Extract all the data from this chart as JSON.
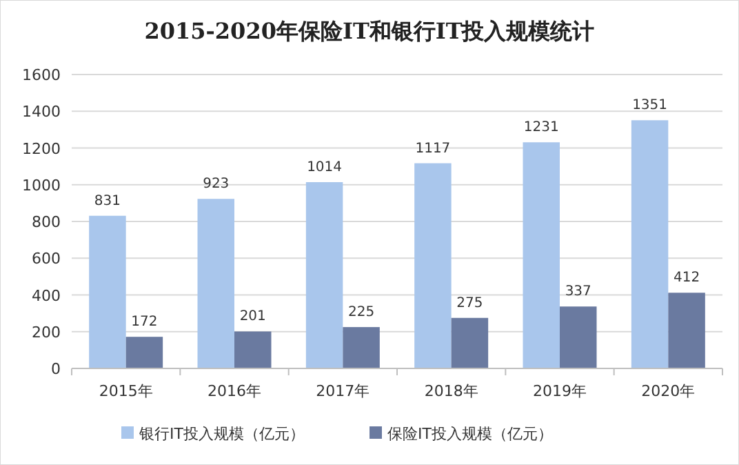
{
  "chart_data": {
    "type": "bar",
    "title": "2015-2020年保险IT和银行IT投入规模统计",
    "categories": [
      "2015年",
      "2016年",
      "2017年",
      "2018年",
      "2019年",
      "2020年"
    ],
    "series": [
      {
        "name": "银行IT投入规模（亿元）",
        "color": "#a9c6ec",
        "values": [
          831,
          923,
          1014,
          1117,
          1231,
          1351
        ]
      },
      {
        "name": "保险IT投入规模（亿元）",
        "color": "#6a7aa0",
        "values": [
          172,
          201,
          225,
          275,
          337,
          412
        ]
      }
    ],
    "ylim": [
      0,
      1600
    ],
    "yticks": [
      0,
      200,
      400,
      600,
      800,
      1000,
      1200,
      1400,
      1600
    ],
    "grid": "y",
    "legend": "bottom",
    "data_labels": true
  }
}
